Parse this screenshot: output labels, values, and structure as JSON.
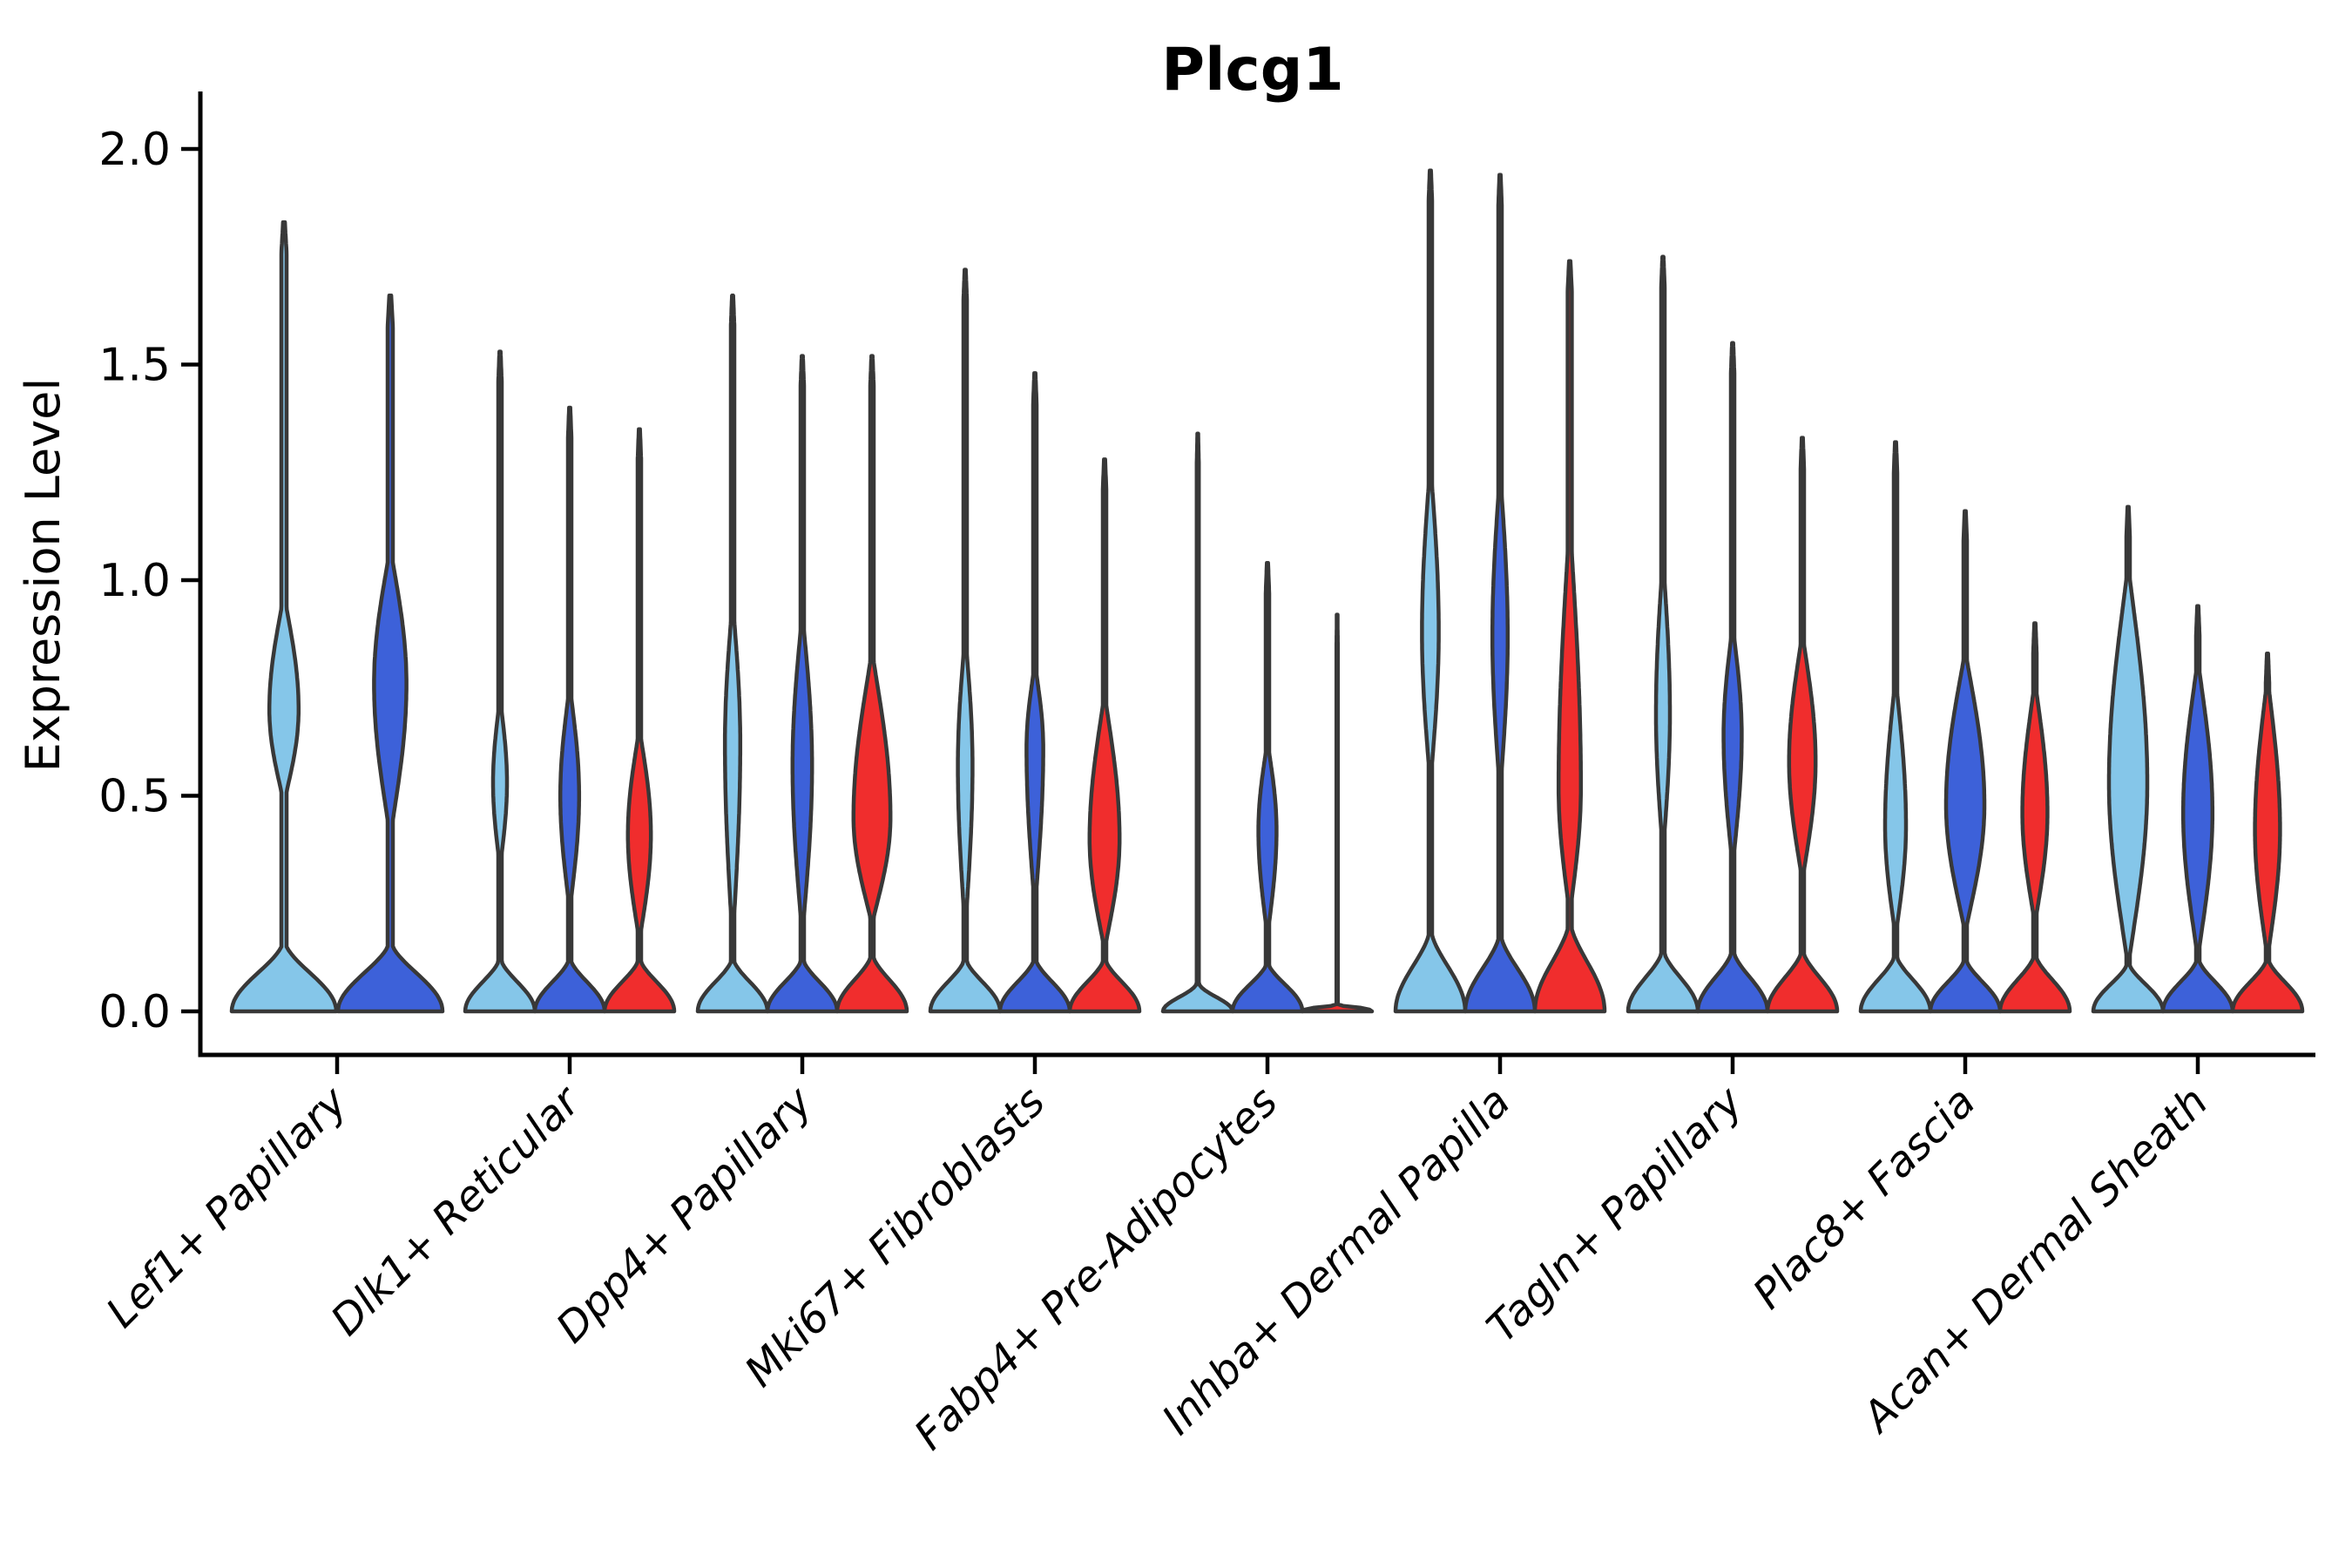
{
  "chart_data": {
    "type": "violin",
    "title": "Plcg1",
    "y_axis": {
      "label": "Expression Level",
      "ticks": [
        "0.0",
        "0.5",
        "1.0",
        "1.5",
        "2.0"
      ],
      "tick_values": [
        0.0,
        0.5,
        1.0,
        1.5,
        2.0
      ],
      "ylim": [
        0,
        2
      ]
    },
    "xlabel": "",
    "legend": "none",
    "grid": false,
    "outline_color": "#383838",
    "categories": [
      "Lef1+ Papillary",
      "Dlk1+ Reticular",
      "Dpp4+ Papillary",
      "Mki67+ Fibroblasts",
      "Fabp4+ Pre-Adipocytes",
      "Inhba+ Dermal Papilla",
      "Tagln+ Papillary",
      "Plac8+ Fascia",
      "Acan+ Dermal Sheath"
    ],
    "series": [
      {
        "name": "light-blue",
        "color": "#85C6E9",
        "max_expression": [
          1.83,
          1.53,
          1.66,
          1.72,
          1.34,
          1.95,
          1.75,
          1.32,
          1.17
        ]
      },
      {
        "name": "royal-blue",
        "color": "#3D61D9",
        "max_expression": [
          1.66,
          1.4,
          1.52,
          1.48,
          1.04,
          1.94,
          1.55,
          1.16,
          0.94
        ]
      },
      {
        "name": "red",
        "color": "#F02D2D",
        "max_expression": [
          null,
          1.35,
          1.52,
          1.28,
          0.92,
          1.74,
          1.33,
          0.9,
          0.83
        ]
      }
    ],
    "violins": [
      {
        "group": 0,
        "series": 0,
        "dx": -61,
        "half_width": 60,
        "max": 1.83,
        "base_top": 0.17,
        "bulge": {
          "lo": 0.48,
          "peak": 0.7,
          "hi": 0.97,
          "w": 0.28
        }
      },
      {
        "group": 0,
        "series": 1,
        "dx": 61,
        "half_width": 60,
        "max": 1.66,
        "base_top": 0.17,
        "bulge": {
          "lo": 0.4,
          "peak": 0.76,
          "hi": 1.08,
          "w": 0.31
        }
      },
      {
        "group": 1,
        "series": 0,
        "dx": -80,
        "half_width": 40,
        "max": 1.53,
        "base_top": 0.13,
        "bulge": {
          "lo": 0.33,
          "peak": 0.53,
          "hi": 0.73,
          "w": 0.2
        }
      },
      {
        "group": 1,
        "series": 1,
        "dx": 0,
        "half_width": 40,
        "max": 1.4,
        "base_top": 0.13,
        "bulge": {
          "lo": 0.23,
          "peak": 0.5,
          "hi": 0.76,
          "w": 0.27
        }
      },
      {
        "group": 1,
        "series": 2,
        "dx": 80,
        "half_width": 40,
        "max": 1.35,
        "base_top": 0.13,
        "bulge": {
          "lo": 0.16,
          "peak": 0.41,
          "hi": 0.66,
          "w": 0.33
        }
      },
      {
        "group": 2,
        "series": 0,
        "dx": -80,
        "half_width": 40,
        "max": 1.66,
        "base_top": 0.13,
        "bulge": {
          "lo": 0.15,
          "peak": 0.62,
          "hi": 0.96,
          "w": 0.22
        }
      },
      {
        "group": 2,
        "series": 1,
        "dx": 0,
        "half_width": 40,
        "max": 1.52,
        "base_top": 0.13,
        "bulge": {
          "lo": 0.17,
          "peak": 0.57,
          "hi": 0.93,
          "w": 0.28
        }
      },
      {
        "group": 2,
        "series": 2,
        "dx": 80,
        "half_width": 40,
        "max": 1.52,
        "base_top": 0.14,
        "bulge": {
          "lo": 0.2,
          "peak": 0.45,
          "hi": 0.84,
          "w": 0.53
        }
      },
      {
        "group": 3,
        "series": 0,
        "dx": -80,
        "half_width": 40,
        "max": 1.72,
        "base_top": 0.13,
        "bulge": {
          "lo": 0.18,
          "peak": 0.57,
          "hi": 0.88,
          "w": 0.21
        }
      },
      {
        "group": 3,
        "series": 1,
        "dx": 0,
        "half_width": 40,
        "max": 1.48,
        "base_top": 0.13,
        "bulge": {
          "lo": 0.23,
          "peak": 0.61,
          "hi": 0.81,
          "w": 0.24
        }
      },
      {
        "group": 3,
        "series": 2,
        "dx": 80,
        "half_width": 40,
        "max": 1.28,
        "base_top": 0.13,
        "bulge": {
          "lo": 0.14,
          "peak": 0.4,
          "hi": 0.74,
          "w": 0.43
        }
      },
      {
        "group": 4,
        "series": 0,
        "dx": -80,
        "half_width": 40,
        "max": 1.34,
        "base_top": 0.075,
        "base_exp": 2.4,
        "stem": 0.03
      },
      {
        "group": 4,
        "series": 1,
        "dx": 0,
        "half_width": 40,
        "max": 1.04,
        "base_top": 0.12,
        "bulge": {
          "lo": 0.17,
          "peak": 0.42,
          "hi": 0.63,
          "w": 0.26
        }
      },
      {
        "group": 4,
        "series": 2,
        "dx": 80,
        "half_width": 40,
        "max": 0.92,
        "base_top": 0.013,
        "base_exp": 0.6,
        "stem": 0.02
      },
      {
        "group": 5,
        "series": 0,
        "dx": -80,
        "half_width": 40,
        "max": 1.95,
        "base_top": 0.2,
        "bulge": {
          "lo": 0.52,
          "peak": 0.88,
          "hi": 1.28,
          "w": 0.24
        }
      },
      {
        "group": 5,
        "series": 1,
        "dx": 0,
        "half_width": 40,
        "max": 1.94,
        "base_top": 0.19,
        "bulge": {
          "lo": 0.5,
          "peak": 0.87,
          "hi": 1.26,
          "w": 0.22
        }
      },
      {
        "group": 5,
        "series": 2,
        "dx": 80,
        "half_width": 40,
        "max": 1.74,
        "base_top": 0.22,
        "stem": 0.06,
        "bulge": {
          "lo": 0.22,
          "peak": 0.52,
          "hi": 1.15,
          "w": 0.32
        }
      },
      {
        "group": 6,
        "series": 0,
        "dx": -80,
        "half_width": 40,
        "max": 1.75,
        "base_top": 0.15,
        "bulge": {
          "lo": 0.36,
          "peak": 0.69,
          "hi": 1.06,
          "w": 0.2
        }
      },
      {
        "group": 6,
        "series": 1,
        "dx": 0,
        "half_width": 40,
        "max": 1.55,
        "base_top": 0.15,
        "bulge": {
          "lo": 0.33,
          "peak": 0.64,
          "hi": 0.9,
          "w": 0.26
        }
      },
      {
        "group": 6,
        "series": 2,
        "dx": 80,
        "half_width": 40,
        "max": 1.33,
        "base_top": 0.15,
        "bulge": {
          "lo": 0.3,
          "peak": 0.58,
          "hi": 0.88,
          "w": 0.38
        }
      },
      {
        "group": 7,
        "series": 0,
        "dx": -80,
        "half_width": 40,
        "max": 1.32,
        "base_top": 0.14,
        "bulge": {
          "lo": 0.17,
          "peak": 0.43,
          "hi": 0.78,
          "w": 0.3
        }
      },
      {
        "group": 7,
        "series": 1,
        "dx": 0,
        "half_width": 40,
        "max": 1.16,
        "base_top": 0.13,
        "bulge": {
          "lo": 0.18,
          "peak": 0.48,
          "hi": 0.84,
          "w": 0.55
        }
      },
      {
        "group": 7,
        "series": 2,
        "dx": 80,
        "half_width": 40,
        "max": 0.9,
        "base_top": 0.14,
        "bulge": {
          "lo": 0.2,
          "peak": 0.46,
          "hi": 0.77,
          "w": 0.36
        }
      },
      {
        "group": 8,
        "series": 0,
        "dx": -80,
        "half_width": 40,
        "max": 1.17,
        "base_top": 0.12,
        "bulge": {
          "lo": 0.1,
          "peak": 0.53,
          "hi": 1.04,
          "w": 0.55
        }
      },
      {
        "group": 8,
        "series": 1,
        "dx": 0,
        "half_width": 40,
        "max": 0.94,
        "base_top": 0.13,
        "bulge": {
          "lo": 0.12,
          "peak": 0.46,
          "hi": 0.82,
          "w": 0.42
        }
      },
      {
        "group": 8,
        "series": 2,
        "dx": 80,
        "half_width": 40,
        "max": 0.83,
        "base_top": 0.13,
        "bulge": {
          "lo": 0.12,
          "peak": 0.42,
          "hi": 0.78,
          "w": 0.36
        }
      }
    ]
  }
}
